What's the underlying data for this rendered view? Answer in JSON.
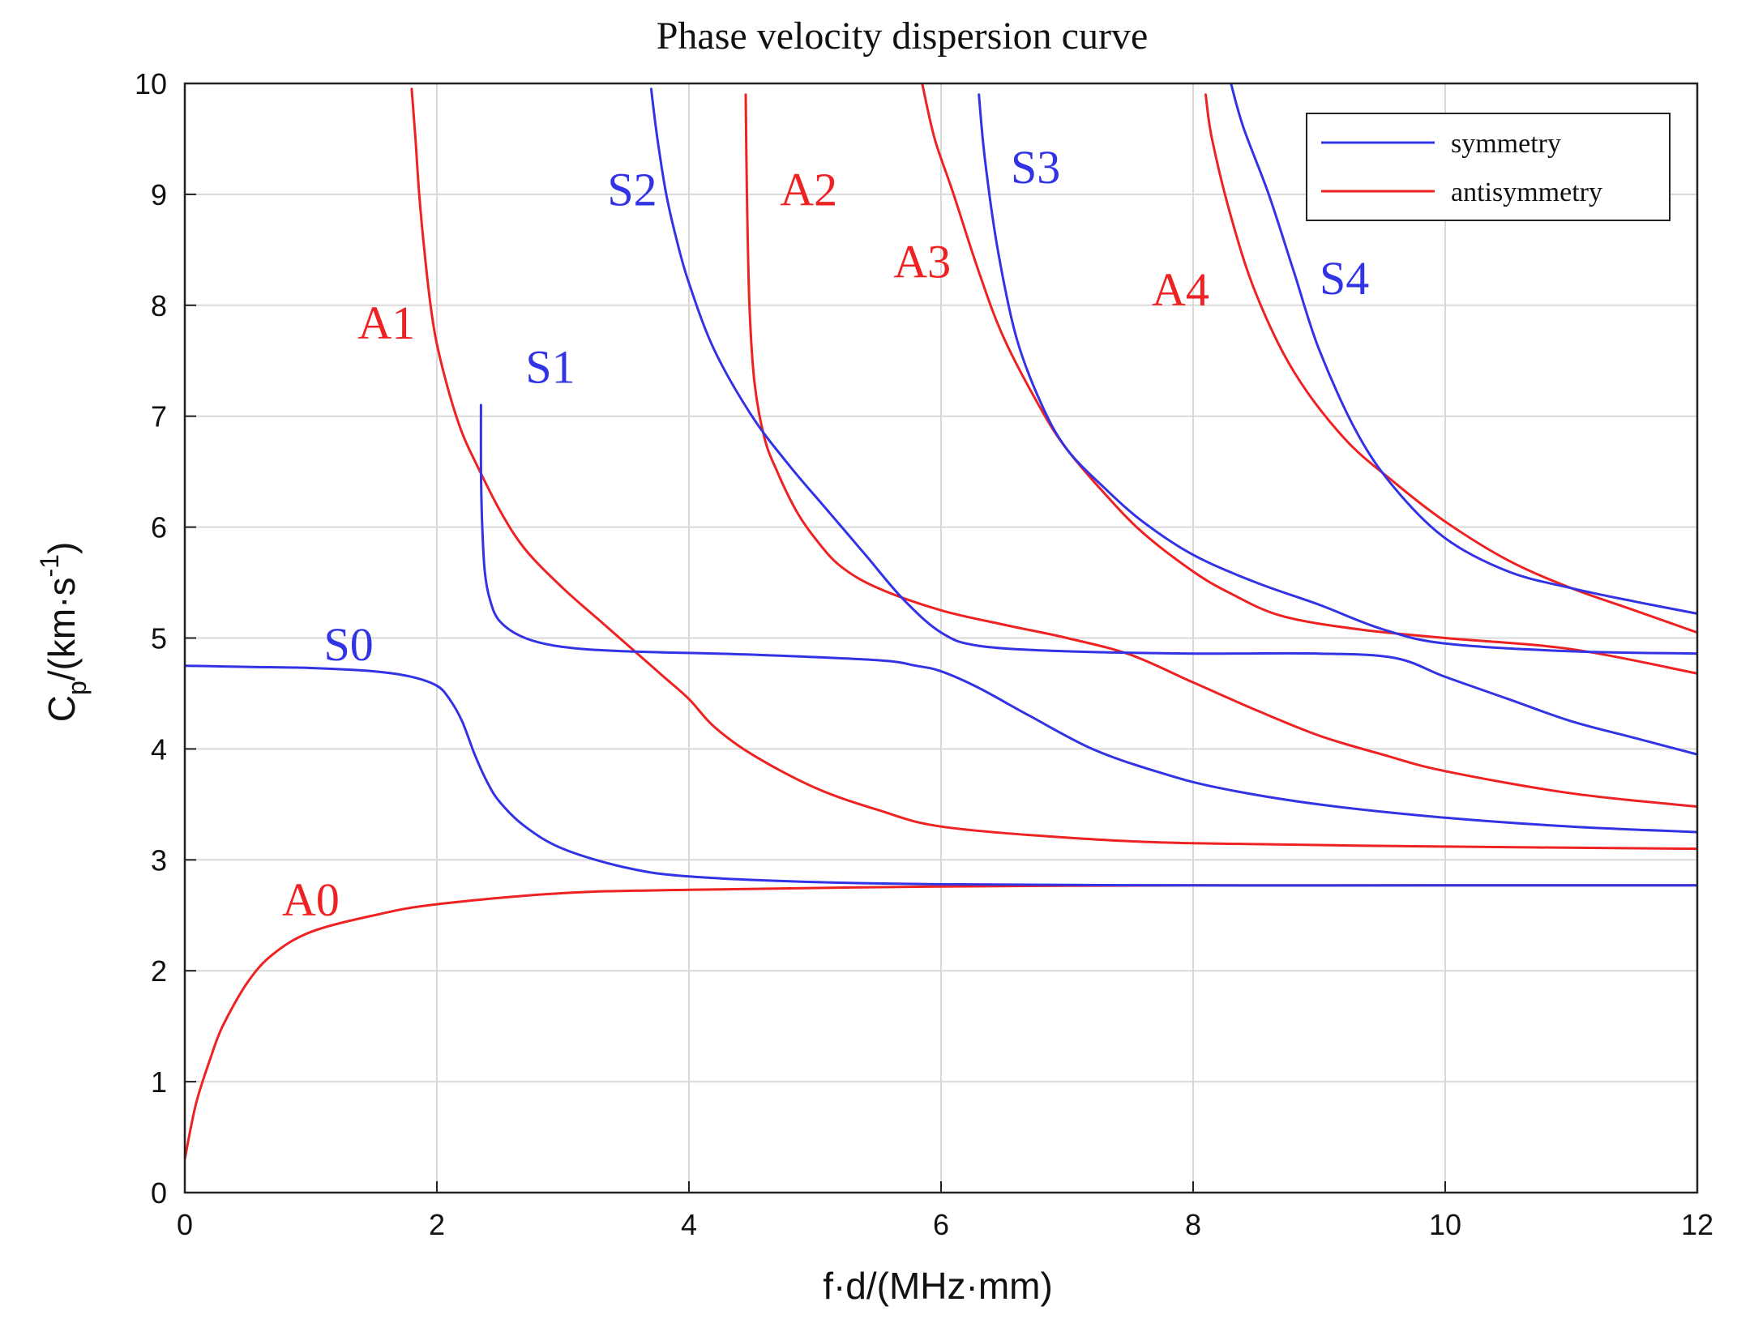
{
  "chart_data": {
    "type": "line",
    "title": "Phase velocity dispersion curve",
    "xlabel": "f·d/(MHz·mm)",
    "ylabel_main": "C",
    "ylabel_sub": "p",
    "ylabel_rest": "/(km·s",
    "ylabel_sup": "-1",
    "ylabel_close": ")",
    "xlim": [
      0,
      12
    ],
    "ylim": [
      0,
      10
    ],
    "xticks": [
      "0",
      "2",
      "4",
      "6",
      "8",
      "10",
      "12"
    ],
    "yticks": [
      "0",
      "1",
      "2",
      "3",
      "4",
      "5",
      "6",
      "7",
      "8",
      "9",
      "10"
    ],
    "grid": true,
    "legend_position": "top-right",
    "colors": {
      "symmetry": "#3333e6",
      "antisymmetry": "#ee2222"
    },
    "legend": [
      {
        "label": "symmetry",
        "group": "symmetry"
      },
      {
        "label": "antisymmetry",
        "group": "antisymmetry"
      }
    ],
    "series": [
      {
        "name": "A0",
        "group": "antisymmetry",
        "points": [
          [
            0,
            0.3
          ],
          [
            0.05,
            0.6
          ],
          [
            0.1,
            0.85
          ],
          [
            0.2,
            1.2
          ],
          [
            0.3,
            1.5
          ],
          [
            0.5,
            1.9
          ],
          [
            0.7,
            2.15
          ],
          [
            1.0,
            2.35
          ],
          [
            1.5,
            2.5
          ],
          [
            2,
            2.6
          ],
          [
            3,
            2.7
          ],
          [
            4,
            2.73
          ],
          [
            6,
            2.76
          ],
          [
            8,
            2.77
          ],
          [
            10,
            2.77
          ],
          [
            12,
            2.77
          ]
        ]
      },
      {
        "name": "A1",
        "group": "antisymmetry",
        "points": [
          [
            1.8,
            9.95
          ],
          [
            1.83,
            9.5
          ],
          [
            1.86,
            9.0
          ],
          [
            1.9,
            8.5
          ],
          [
            1.95,
            8.0
          ],
          [
            2.0,
            7.65
          ],
          [
            2.1,
            7.2
          ],
          [
            2.2,
            6.85
          ],
          [
            2.3,
            6.6
          ],
          [
            2.5,
            6.15
          ],
          [
            2.7,
            5.8
          ],
          [
            3.0,
            5.45
          ],
          [
            3.3,
            5.15
          ],
          [
            3.6,
            4.85
          ],
          [
            3.8,
            4.65
          ],
          [
            4.0,
            4.45
          ],
          [
            4.2,
            4.2
          ],
          [
            4.5,
            3.95
          ],
          [
            5.0,
            3.65
          ],
          [
            5.5,
            3.45
          ],
          [
            6.0,
            3.3
          ],
          [
            7.0,
            3.2
          ],
          [
            8.0,
            3.15
          ],
          [
            10,
            3.12
          ],
          [
            12,
            3.1
          ]
        ]
      },
      {
        "name": "A2",
        "group": "antisymmetry",
        "points": [
          [
            4.45,
            9.9
          ],
          [
            4.46,
            9.0
          ],
          [
            4.48,
            8.0
          ],
          [
            4.52,
            7.3
          ],
          [
            4.6,
            6.8
          ],
          [
            4.7,
            6.5
          ],
          [
            4.85,
            6.15
          ],
          [
            5.0,
            5.9
          ],
          [
            5.2,
            5.65
          ],
          [
            5.5,
            5.45
          ],
          [
            6.0,
            5.25
          ],
          [
            6.5,
            5.12
          ],
          [
            7.0,
            5.0
          ],
          [
            7.5,
            4.85
          ],
          [
            8.0,
            4.6
          ],
          [
            8.5,
            4.35
          ],
          [
            9.0,
            4.12
          ],
          [
            9.5,
            3.95
          ],
          [
            10,
            3.8
          ],
          [
            11,
            3.6
          ],
          [
            12,
            3.48
          ]
        ]
      },
      {
        "name": "A3",
        "group": "antisymmetry",
        "points": [
          [
            5.85,
            10.0
          ],
          [
            5.95,
            9.5
          ],
          [
            6.1,
            9.0
          ],
          [
            6.3,
            8.3
          ],
          [
            6.5,
            7.7
          ],
          [
            6.8,
            7.05
          ],
          [
            7.0,
            6.7
          ],
          [
            7.3,
            6.3
          ],
          [
            7.6,
            5.95
          ],
          [
            8.0,
            5.6
          ],
          [
            8.3,
            5.4
          ],
          [
            8.7,
            5.2
          ],
          [
            9.3,
            5.08
          ],
          [
            10,
            5.0
          ],
          [
            11,
            4.9
          ],
          [
            12,
            4.68
          ]
        ]
      },
      {
        "name": "A4",
        "group": "antisymmetry",
        "points": [
          [
            8.1,
            9.9
          ],
          [
            8.15,
            9.5
          ],
          [
            8.3,
            8.8
          ],
          [
            8.5,
            8.1
          ],
          [
            8.8,
            7.4
          ],
          [
            9.2,
            6.8
          ],
          [
            9.6,
            6.4
          ],
          [
            10,
            6.05
          ],
          [
            10.5,
            5.7
          ],
          [
            11,
            5.45
          ],
          [
            11.5,
            5.25
          ],
          [
            12,
            5.05
          ]
        ]
      },
      {
        "name": "S0",
        "group": "symmetry",
        "points": [
          [
            0,
            4.75
          ],
          [
            0.5,
            4.74
          ],
          [
            1.0,
            4.73
          ],
          [
            1.5,
            4.7
          ],
          [
            1.8,
            4.65
          ],
          [
            2.0,
            4.57
          ],
          [
            2.1,
            4.45
          ],
          [
            2.2,
            4.25
          ],
          [
            2.3,
            3.95
          ],
          [
            2.4,
            3.7
          ],
          [
            2.5,
            3.52
          ],
          [
            2.7,
            3.3
          ],
          [
            3.0,
            3.1
          ],
          [
            3.5,
            2.93
          ],
          [
            4.0,
            2.85
          ],
          [
            5.0,
            2.8
          ],
          [
            6.0,
            2.78
          ],
          [
            8.0,
            2.77
          ],
          [
            10,
            2.77
          ],
          [
            12,
            2.77
          ]
        ]
      },
      {
        "name": "S1",
        "group": "symmetry",
        "points": [
          [
            2.35,
            7.1
          ],
          [
            2.35,
            6.5
          ],
          [
            2.36,
            6.0
          ],
          [
            2.38,
            5.6
          ],
          [
            2.42,
            5.35
          ],
          [
            2.5,
            5.15
          ],
          [
            2.7,
            5.0
          ],
          [
            3.0,
            4.92
          ],
          [
            3.5,
            4.88
          ],
          [
            4.5,
            4.85
          ],
          [
            5.5,
            4.8
          ],
          [
            5.8,
            4.75
          ],
          [
            6.0,
            4.7
          ],
          [
            6.3,
            4.55
          ],
          [
            6.7,
            4.3
          ],
          [
            7.2,
            4.0
          ],
          [
            7.7,
            3.8
          ],
          [
            8.2,
            3.65
          ],
          [
            9.0,
            3.5
          ],
          [
            10,
            3.38
          ],
          [
            11,
            3.3
          ],
          [
            12,
            3.25
          ]
        ]
      },
      {
        "name": "S2",
        "group": "symmetry",
        "points": [
          [
            3.7,
            9.95
          ],
          [
            3.75,
            9.5
          ],
          [
            3.82,
            9.0
          ],
          [
            3.9,
            8.6
          ],
          [
            4.0,
            8.2
          ],
          [
            4.2,
            7.6
          ],
          [
            4.5,
            7.0
          ],
          [
            4.8,
            6.55
          ],
          [
            5.1,
            6.15
          ],
          [
            5.4,
            5.75
          ],
          [
            5.7,
            5.35
          ],
          [
            6.0,
            5.05
          ],
          [
            6.3,
            4.93
          ],
          [
            7.0,
            4.88
          ],
          [
            8.0,
            4.86
          ],
          [
            9.0,
            4.86
          ],
          [
            9.6,
            4.82
          ],
          [
            10.0,
            4.65
          ],
          [
            10.5,
            4.45
          ],
          [
            11.0,
            4.25
          ],
          [
            11.5,
            4.1
          ],
          [
            12.0,
            3.95
          ]
        ]
      },
      {
        "name": "S3",
        "group": "symmetry",
        "points": [
          [
            6.3,
            9.9
          ],
          [
            6.35,
            9.3
          ],
          [
            6.45,
            8.5
          ],
          [
            6.6,
            7.7
          ],
          [
            6.8,
            7.1
          ],
          [
            7.0,
            6.7
          ],
          [
            7.3,
            6.35
          ],
          [
            7.6,
            6.05
          ],
          [
            8.0,
            5.75
          ],
          [
            8.5,
            5.5
          ],
          [
            9.0,
            5.3
          ],
          [
            9.5,
            5.08
          ],
          [
            10.0,
            4.95
          ],
          [
            11.0,
            4.88
          ],
          [
            12.0,
            4.86
          ]
        ]
      },
      {
        "name": "S4",
        "group": "symmetry",
        "points": [
          [
            8.3,
            10.0
          ],
          [
            8.4,
            9.6
          ],
          [
            8.6,
            9.0
          ],
          [
            8.8,
            8.3
          ],
          [
            9.0,
            7.6
          ],
          [
            9.3,
            6.85
          ],
          [
            9.6,
            6.35
          ],
          [
            10.0,
            5.9
          ],
          [
            10.5,
            5.6
          ],
          [
            11.0,
            5.45
          ],
          [
            11.5,
            5.33
          ],
          [
            12.0,
            5.22
          ]
        ]
      }
    ],
    "annotations": [
      {
        "text": "A0",
        "group": "antisymmetry",
        "x": 1.0,
        "y": 2.5
      },
      {
        "text": "A1",
        "group": "antisymmetry",
        "x": 1.6,
        "y": 7.7
      },
      {
        "text": "A2",
        "group": "antisymmetry",
        "x": 4.95,
        "y": 8.9
      },
      {
        "text": "A3",
        "group": "antisymmetry",
        "x": 5.85,
        "y": 8.25
      },
      {
        "text": "A4",
        "group": "antisymmetry",
        "x": 7.9,
        "y": 8.0
      },
      {
        "text": "S0",
        "group": "symmetry",
        "x": 1.3,
        "y": 4.8
      },
      {
        "text": "S1",
        "group": "symmetry",
        "x": 2.9,
        "y": 7.3
      },
      {
        "text": "S2",
        "group": "symmetry",
        "x": 3.55,
        "y": 8.9
      },
      {
        "text": "S3",
        "group": "symmetry",
        "x": 6.75,
        "y": 9.1
      },
      {
        "text": "S4",
        "group": "symmetry",
        "x": 9.2,
        "y": 8.1
      }
    ]
  }
}
